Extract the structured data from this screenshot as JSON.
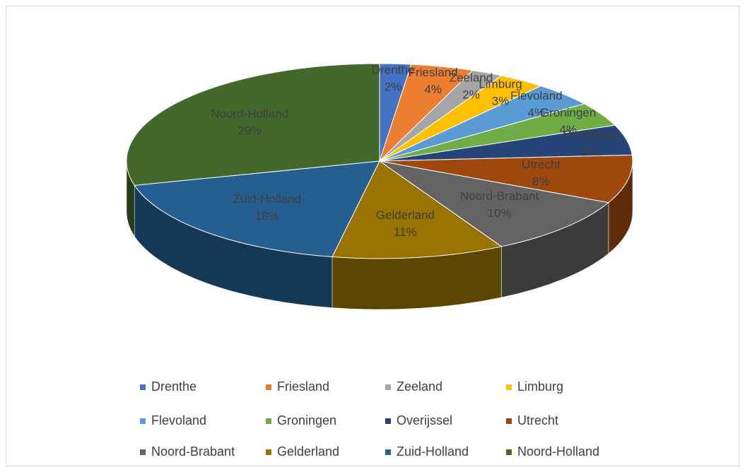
{
  "chart_data": {
    "type": "pie3d",
    "categories": [
      "Drenthe",
      "Friesland",
      "Zeeland",
      "Limburg",
      "Flevoland",
      "Groningen",
      "Overijssel",
      "Utrecht",
      "Noord-Brabant",
      "Gelderland",
      "Zuid-Holland",
      "Noord-Holland"
    ],
    "values": [
      2,
      4,
      2,
      3,
      4,
      4,
      5,
      8,
      10,
      11,
      18,
      29
    ],
    "value_labels": [
      "2%",
      "4%",
      "2%",
      "3%",
      "4%",
      "4%",
      "5%",
      "8%",
      "10%",
      "11%",
      "18%",
      "29%"
    ],
    "colors": [
      "#4472c4",
      "#ed7d31",
      "#a5a5a5",
      "#ffc000",
      "#5b9bd5",
      "#70ad47",
      "#264478",
      "#9e480e",
      "#636363",
      "#997300",
      "#255e91",
      "#43682b"
    ],
    "legend": "bottom"
  }
}
